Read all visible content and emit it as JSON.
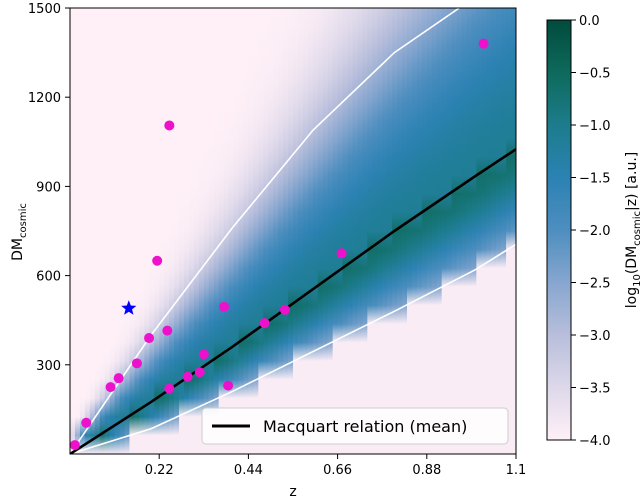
{
  "chart_data": {
    "type": "scatter",
    "xlabel": "z",
    "ylabel": "DM",
    "ylabel_sub": "cosmic",
    "xlim": [
      0,
      1.1
    ],
    "ylim": [
      0,
      1500
    ],
    "xticks": [
      0.22,
      0.44,
      0.66,
      0.88,
      1.1
    ],
    "xtick_labels": [
      "0.22",
      "0.44",
      "0.66",
      "0.88",
      "1.1"
    ],
    "yticks": [
      300,
      600,
      900,
      1200,
      1500
    ],
    "ytick_labels": [
      "300",
      "600",
      "900",
      "1200",
      "1500"
    ],
    "legend": {
      "placement": "lower-right",
      "entries": [
        "Macquart relation (mean)"
      ]
    },
    "macquart_mean": {
      "name": "Macquart relation (mean)",
      "x": [
        0,
        0.2,
        0.4,
        0.6,
        0.8,
        1.0,
        1.1
      ],
      "y": [
        0,
        175,
        360,
        555,
        750,
        935,
        1025
      ],
      "color": "#000000"
    },
    "upper_bound": {
      "x": [
        0,
        0.2,
        0.4,
        0.6,
        0.8,
        0.96
      ],
      "y": [
        0,
        400,
        760,
        1090,
        1350,
        1500
      ],
      "color": "#ffffff"
    },
    "lower_bound": {
      "x": [
        0,
        0.2,
        0.4,
        0.6,
        0.8,
        1.0,
        1.1
      ],
      "y": [
        0,
        85,
        210,
        345,
        480,
        620,
        705
      ],
      "color": "#ffffff"
    },
    "frbs": {
      "color": "#ee11cc",
      "x": [
        0.012,
        0.04,
        0.1,
        0.12,
        0.165,
        0.195,
        0.215,
        0.24,
        0.245,
        0.245,
        0.29,
        0.32,
        0.33,
        0.38,
        0.39,
        0.48,
        0.53,
        0.67,
        1.02
      ],
      "y": [
        30,
        105,
        225,
        255,
        305,
        390,
        650,
        415,
        1105,
        220,
        260,
        275,
        335,
        495,
        230,
        440,
        485,
        675,
        1380
      ]
    },
    "highlight": {
      "x": 0.145,
      "y": 490,
      "color": "#0000ff",
      "marker": "star"
    },
    "colorbar": {
      "label": "log",
      "label_sub": "10",
      "label_mid": "(DM",
      "label_sub2": "cosmic",
      "label_end": "|z) [a.u.]",
      "range": [
        -4.0,
        0.0
      ],
      "ticks": [
        0.0,
        -0.5,
        -1.0,
        -1.5,
        -2.0,
        -2.5,
        -3.0,
        -3.5,
        -4.0
      ],
      "tick_labels": [
        "0.0",
        "−0.5",
        "−1.0",
        "−1.5",
        "−2.0",
        "−2.5",
        "−3.0",
        "−3.5",
        "−4.0"
      ],
      "colormap": [
        "#fff0f7",
        "#ddd8ea",
        "#b8bedb",
        "#87a6cf",
        "#4d8ebf",
        "#2b82b3",
        "#1c7c8c",
        "#0e6a5c",
        "#004b3c"
      ]
    }
  }
}
